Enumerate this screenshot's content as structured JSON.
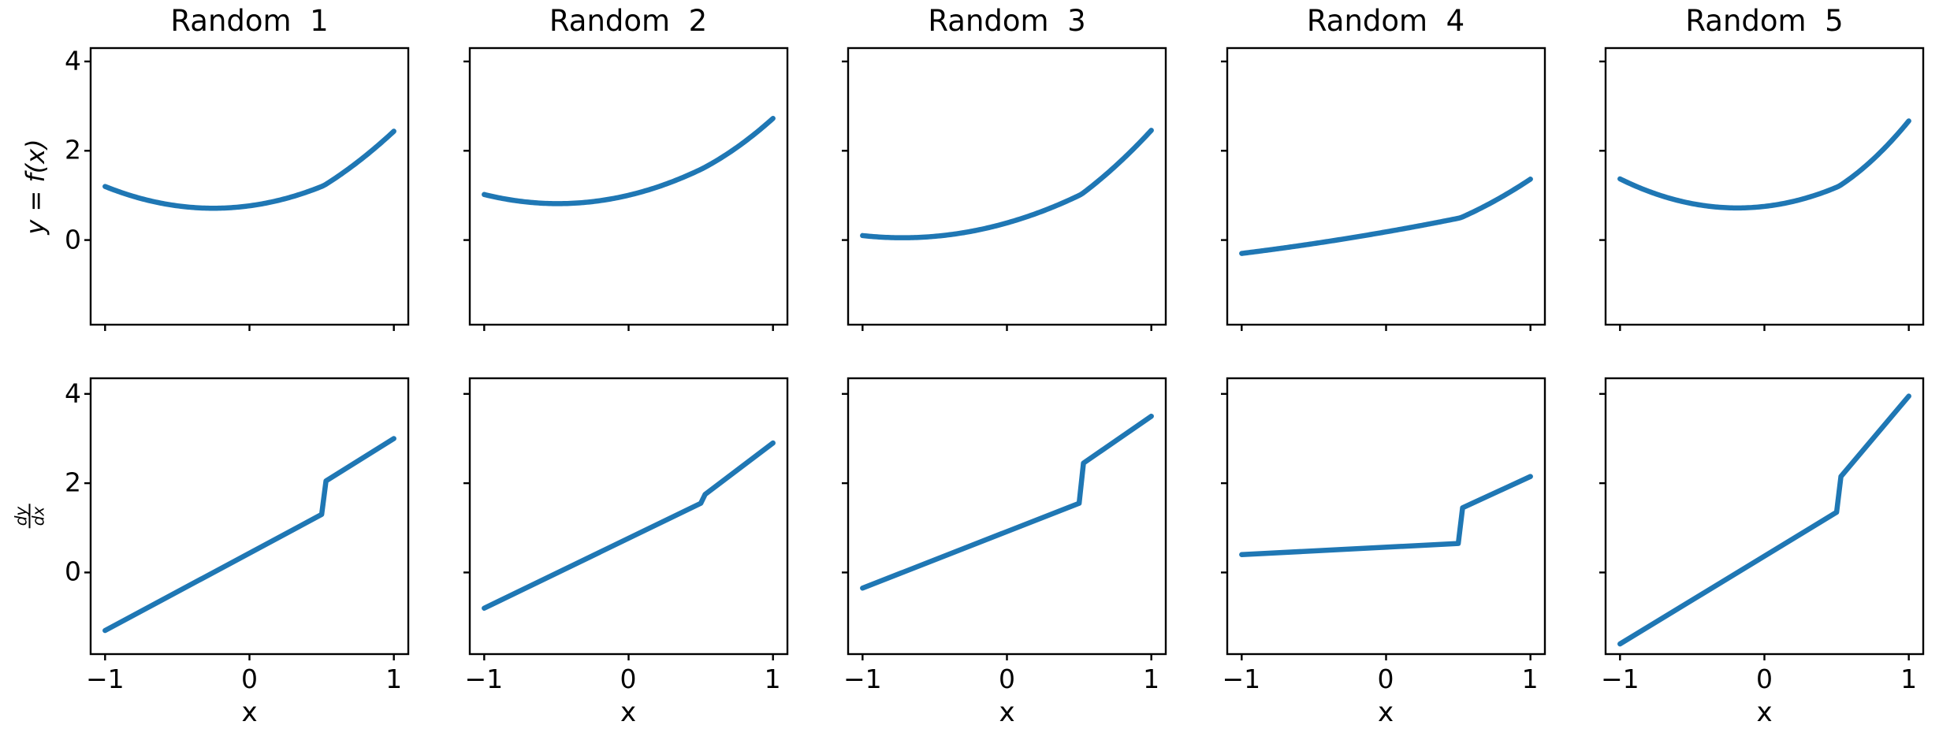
{
  "figure": {
    "background": "#ffffff",
    "spine_color": "#000000",
    "text_color": "#000000"
  },
  "labels": {
    "xlabel": "x",
    "ylabel_top": "y = f(x)",
    "dydx_numerator": "dy",
    "dydx_denominator": "dx"
  },
  "chart_data": {
    "type": "line",
    "layout": {
      "rows": 2,
      "cols": 5,
      "sharex": true,
      "sharey_rows": true
    },
    "line_color": "#1f77b4",
    "xlim": [
      -1.1,
      1.1
    ],
    "ylim_top": [
      -1.9,
      4.3
    ],
    "ylim_bottom": [
      -1.83,
      4.35
    ],
    "x_tick_values": [
      -1,
      0,
      1
    ],
    "x_tick_labels": [
      "−1",
      "0",
      "1"
    ],
    "y_tick_values": [
      4,
      2,
      0
    ],
    "y_tick_labels": [
      "4",
      "2",
      "0"
    ],
    "grid": false,
    "legend": "none",
    "panels": [
      {
        "title": "Random  1",
        "f": {
          "x": [
            -1,
            -0.75,
            -0.5,
            -0.25,
            0,
            0.25,
            0.5,
            0.75,
            1
          ],
          "y": [
            1.2,
            0.929,
            0.767,
            0.713,
            0.767,
            0.929,
            1.2,
            1.772,
            2.463
          ]
        },
        "dfdx": {
          "x": [
            -1,
            0.5,
            0.53,
            1
          ],
          "y": [
            -1.3,
            1.3,
            2.05,
            3.0
          ]
        }
      },
      {
        "title": "Random  2",
        "f": {
          "x": [
            -1,
            -0.75,
            -0.5,
            -0.25,
            0,
            0.25,
            0.5,
            0.75,
            1
          ],
          "y": [
            1.02,
            0.869,
            0.816,
            0.861,
            1.003,
            1.244,
            1.583,
            2.092,
            2.745
          ]
        },
        "dfdx": {
          "x": [
            -1,
            0.5,
            0.53,
            1
          ],
          "y": [
            -0.8,
            1.55,
            1.75,
            2.9
          ]
        }
      },
      {
        "title": "Random  3",
        "f": {
          "x": [
            -1,
            -0.75,
            -0.5,
            -0.25,
            0,
            0.25,
            0.5,
            0.75,
            1
          ],
          "y": [
            0.1,
            0.052,
            0.083,
            0.194,
            0.383,
            0.652,
            1.0,
            1.678,
            2.488
          ]
        },
        "dfdx": {
          "x": [
            -1,
            0.5,
            0.53,
            1
          ],
          "y": [
            -0.35,
            1.55,
            2.45,
            3.5
          ]
        }
      },
      {
        "title": "Random  4",
        "f": {
          "x": [
            -1,
            -0.75,
            -0.5,
            -0.25,
            0,
            0.25,
            0.5,
            0.75,
            1
          ],
          "y": [
            -0.3,
            -0.195,
            -0.079,
            0.047,
            0.183,
            0.33,
            0.488,
            0.894,
            1.388
          ]
        },
        "dfdx": {
          "x": [
            -1,
            0.5,
            0.53,
            1
          ],
          "y": [
            0.4,
            0.65,
            1.45,
            2.15
          ]
        }
      },
      {
        "title": "Random  5",
        "f": {
          "x": [
            -1,
            -0.75,
            -0.5,
            -0.25,
            0,
            0.25,
            0.5,
            0.75,
            1
          ],
          "y": [
            1.37,
            1.031,
            0.816,
            0.723,
            0.753,
            0.906,
            1.183,
            1.833,
            2.708
          ]
        },
        "dfdx": {
          "x": [
            -1,
            0.5,
            0.53,
            1
          ],
          "y": [
            -1.6,
            1.35,
            2.15,
            3.95
          ]
        }
      }
    ]
  }
}
